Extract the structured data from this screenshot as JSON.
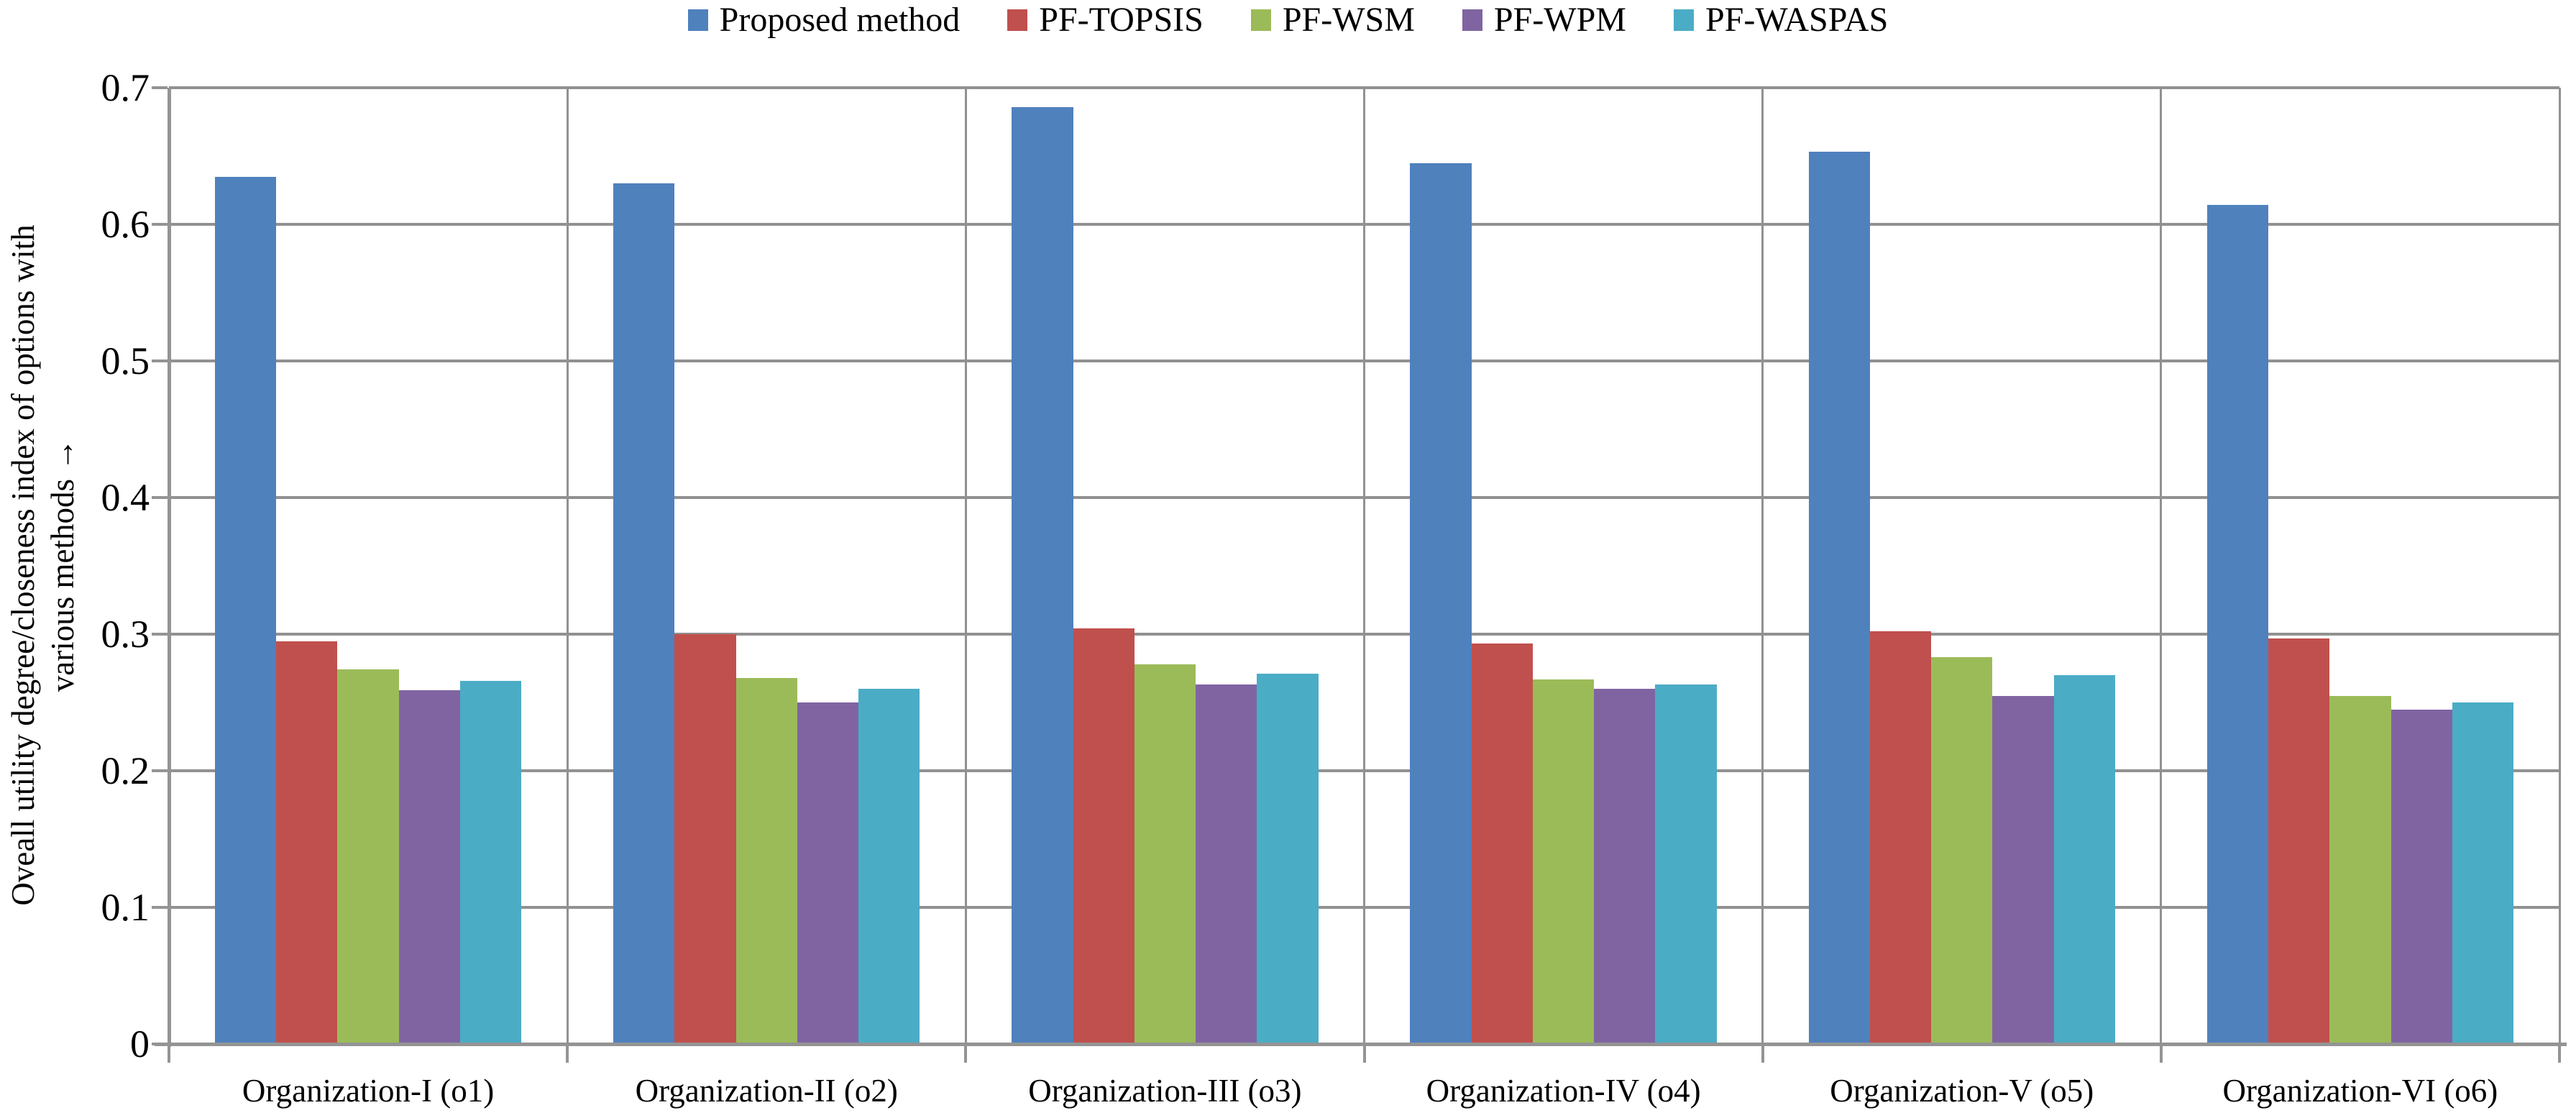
{
  "figure": {
    "background": "#FFFFFF",
    "text_color": "#000000"
  },
  "axes_style": {
    "gridline_color": "#919191",
    "axis_line_color": "#949494",
    "tick_color": "#949494"
  },
  "legend": {
    "position": "top-center",
    "items": [
      "Proposed method",
      "PF-TOPSIS",
      "PF-WSM",
      "PF-WPM",
      "PF-WASPAS"
    ]
  },
  "chart_data": {
    "type": "bar",
    "categories": [
      "Organization-I (o1)",
      "Organization-II (o2)",
      "Organization-III (o3)",
      "Organization-IV (o4)",
      "Organization-V (o5)",
      "Organization-VI (o6)"
    ],
    "series": [
      {
        "name": "Proposed method",
        "color": "#4F81BD",
        "values": [
          0.635,
          0.63,
          0.686,
          0.645,
          0.653,
          0.614
        ]
      },
      {
        "name": "PF-TOPSIS",
        "color": "#C0504D",
        "values": [
          0.295,
          0.3,
          0.304,
          0.293,
          0.302,
          0.297
        ]
      },
      {
        "name": "PF-WSM",
        "color": "#9BBB59",
        "values": [
          0.274,
          0.268,
          0.278,
          0.267,
          0.283,
          0.255
        ]
      },
      {
        "name": "PF-WPM",
        "color": "#8064A2",
        "values": [
          0.259,
          0.25,
          0.263,
          0.26,
          0.255,
          0.245
        ]
      },
      {
        "name": "PF-WASPAS",
        "color": "#4BACC6",
        "values": [
          0.266,
          0.26,
          0.271,
          0.263,
          0.27,
          0.25
        ]
      }
    ],
    "ylabel_lines": [
      "Oveall utility degree/closeness index of options with",
      "various methods →"
    ],
    "xlabel": "",
    "ylim": [
      0,
      0.7
    ],
    "ytick_step": 0.1,
    "ytick_labels": [
      "0",
      "0.1",
      "0.2",
      "0.3",
      "0.4",
      "0.5",
      "0.6",
      "0.7"
    ],
    "grid": {
      "horizontal": true,
      "vertical_category_boundaries": true
    },
    "legend_position": "top"
  }
}
